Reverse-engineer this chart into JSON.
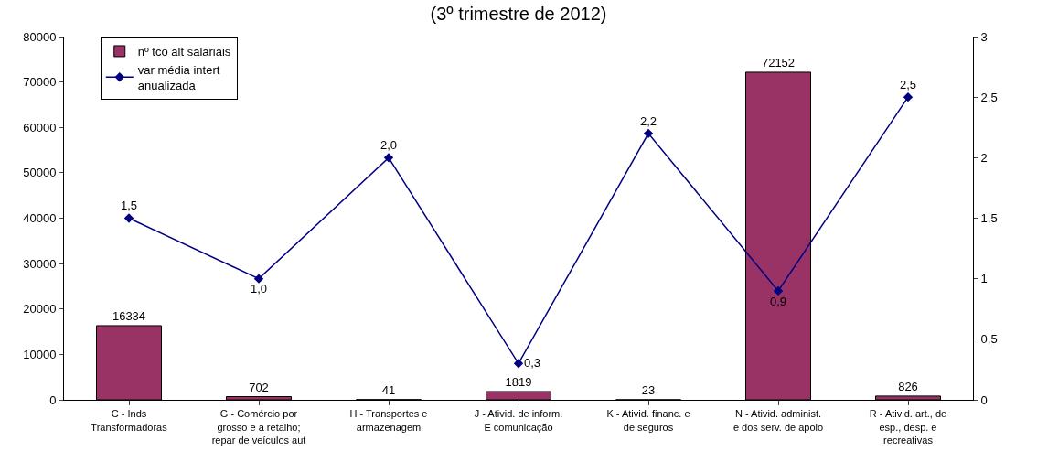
{
  "chart_data": {
    "type": "bar",
    "title": "(3º trimestre de 2012)",
    "categories": [
      "C - Inds Transformadoras",
      "G - Comércio por grosso e a retalho; repar de veículos aut",
      "H - Transportes e armazenagem",
      "J - Ativid. de inform. E comunicação",
      "K - Ativid. financ. e de seguros",
      "N - Ativid. administ. e dos serv. de apoio",
      "R - Ativid. art., de esp., desp. e recreativas"
    ],
    "series": [
      {
        "name": "nº tco alt salariais",
        "color": "#993366",
        "values": [
          16334,
          702,
          41,
          1819,
          23,
          72152,
          826
        ],
        "value_labels": [
          "16334",
          "702",
          "41",
          "1819",
          "23",
          "72152",
          "826"
        ]
      },
      {
        "name": "var média intert anualizada",
        "type": "line",
        "axis": "y2",
        "color": "#000080",
        "marker": "diamond",
        "values": [
          1.5,
          1.0,
          2.0,
          0.3,
          2.2,
          0.9,
          2.5
        ],
        "value_labels": [
          "1,5",
          "1,0",
          "2,0",
          "0,3",
          "2,2",
          "0,9",
          "2,5"
        ]
      }
    ],
    "ylim": [
      0,
      80000
    ],
    "yticks": [
      0,
      10000,
      20000,
      30000,
      40000,
      50000,
      60000,
      70000,
      80000
    ],
    "y2lim": [
      0,
      3
    ],
    "y2ticks": [
      0,
      {
        "value": 0.5,
        "label": "0,5"
      },
      1,
      {
        "value": 1.5,
        "label": "1,5"
      },
      2,
      {
        "value": 2.5,
        "label": "2,5"
      },
      3
    ],
    "grid": false,
    "legend": "top left"
  }
}
